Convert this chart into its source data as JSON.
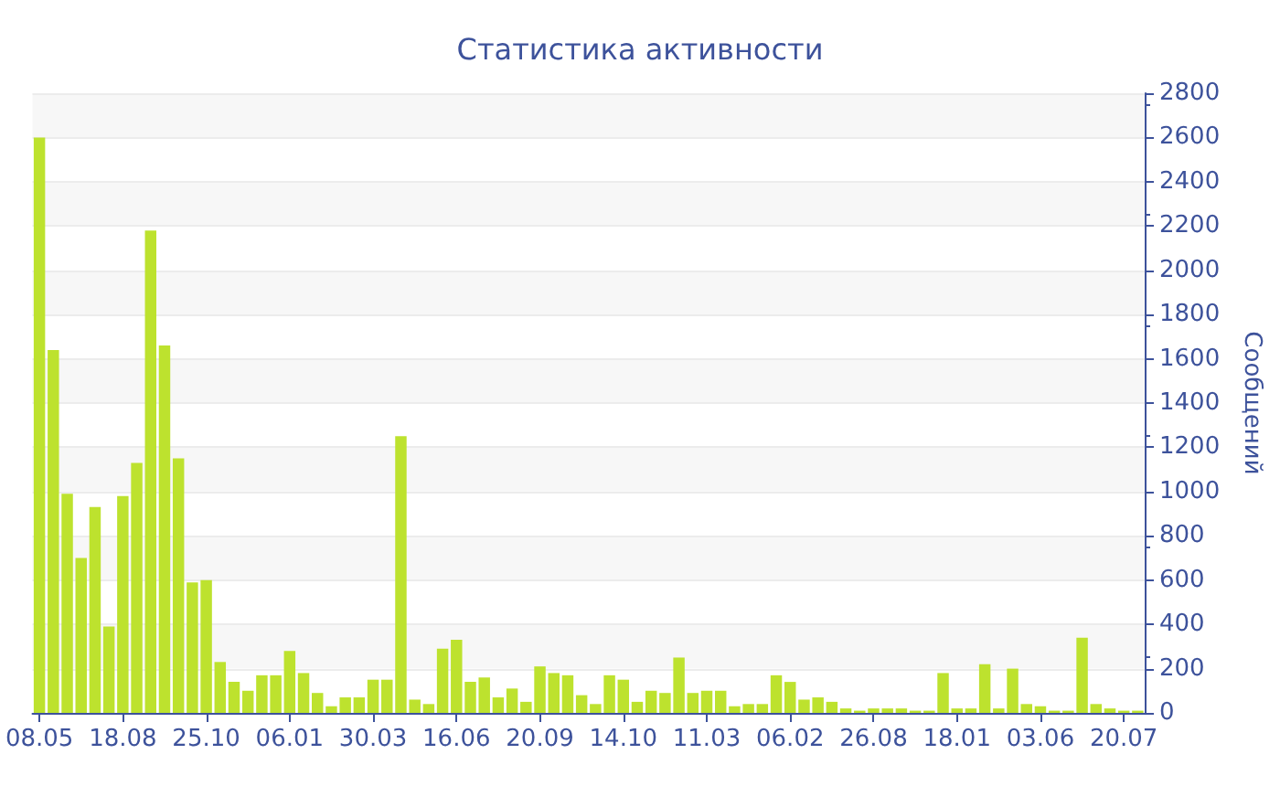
{
  "chart_data": {
    "type": "bar",
    "title": "Статистика активности",
    "ylabel": "Сообщений",
    "categories": [
      "08.05",
      null,
      null,
      null,
      null,
      null,
      "18.08",
      null,
      null,
      null,
      null,
      null,
      "25.10",
      null,
      null,
      null,
      null,
      null,
      "06.01",
      null,
      null,
      null,
      null,
      null,
      "30.03",
      null,
      null,
      null,
      null,
      null,
      "16.06",
      null,
      null,
      null,
      null,
      null,
      "20.09",
      null,
      null,
      null,
      null,
      null,
      "14.10",
      null,
      null,
      null,
      null,
      null,
      "11.03",
      null,
      null,
      null,
      null,
      null,
      "06.02",
      null,
      null,
      null,
      null,
      null,
      "26.08",
      null,
      null,
      null,
      null,
      null,
      "18.01",
      null,
      null,
      null,
      null,
      null,
      "03.06",
      null,
      null,
      null,
      null,
      null,
      "20.07",
      null
    ],
    "values": [
      2600,
      1640,
      990,
      700,
      930,
      390,
      980,
      1130,
      2180,
      1660,
      1150,
      590,
      600,
      230,
      140,
      100,
      170,
      170,
      280,
      180,
      90,
      30,
      70,
      70,
      150,
      150,
      1250,
      60,
      40,
      290,
      330,
      140,
      160,
      70,
      110,
      50,
      210,
      180,
      170,
      80,
      40,
      170,
      150,
      50,
      100,
      90,
      250,
      90,
      100,
      100,
      30,
      40,
      40,
      170,
      140,
      60,
      70,
      50,
      20,
      10,
      20,
      20,
      20,
      10,
      10,
      180,
      20,
      20,
      220,
      20,
      200,
      40,
      30,
      10,
      10,
      340,
      40,
      20,
      10,
      10
    ],
    "color": "#bde22e",
    "ylim": [
      0,
      2800
    ],
    "yticks": [
      0,
      200,
      400,
      600,
      800,
      1000,
      1200,
      1400,
      1600,
      1800,
      2000,
      2200,
      2400,
      2600,
      2800
    ],
    "grid": "y"
  }
}
